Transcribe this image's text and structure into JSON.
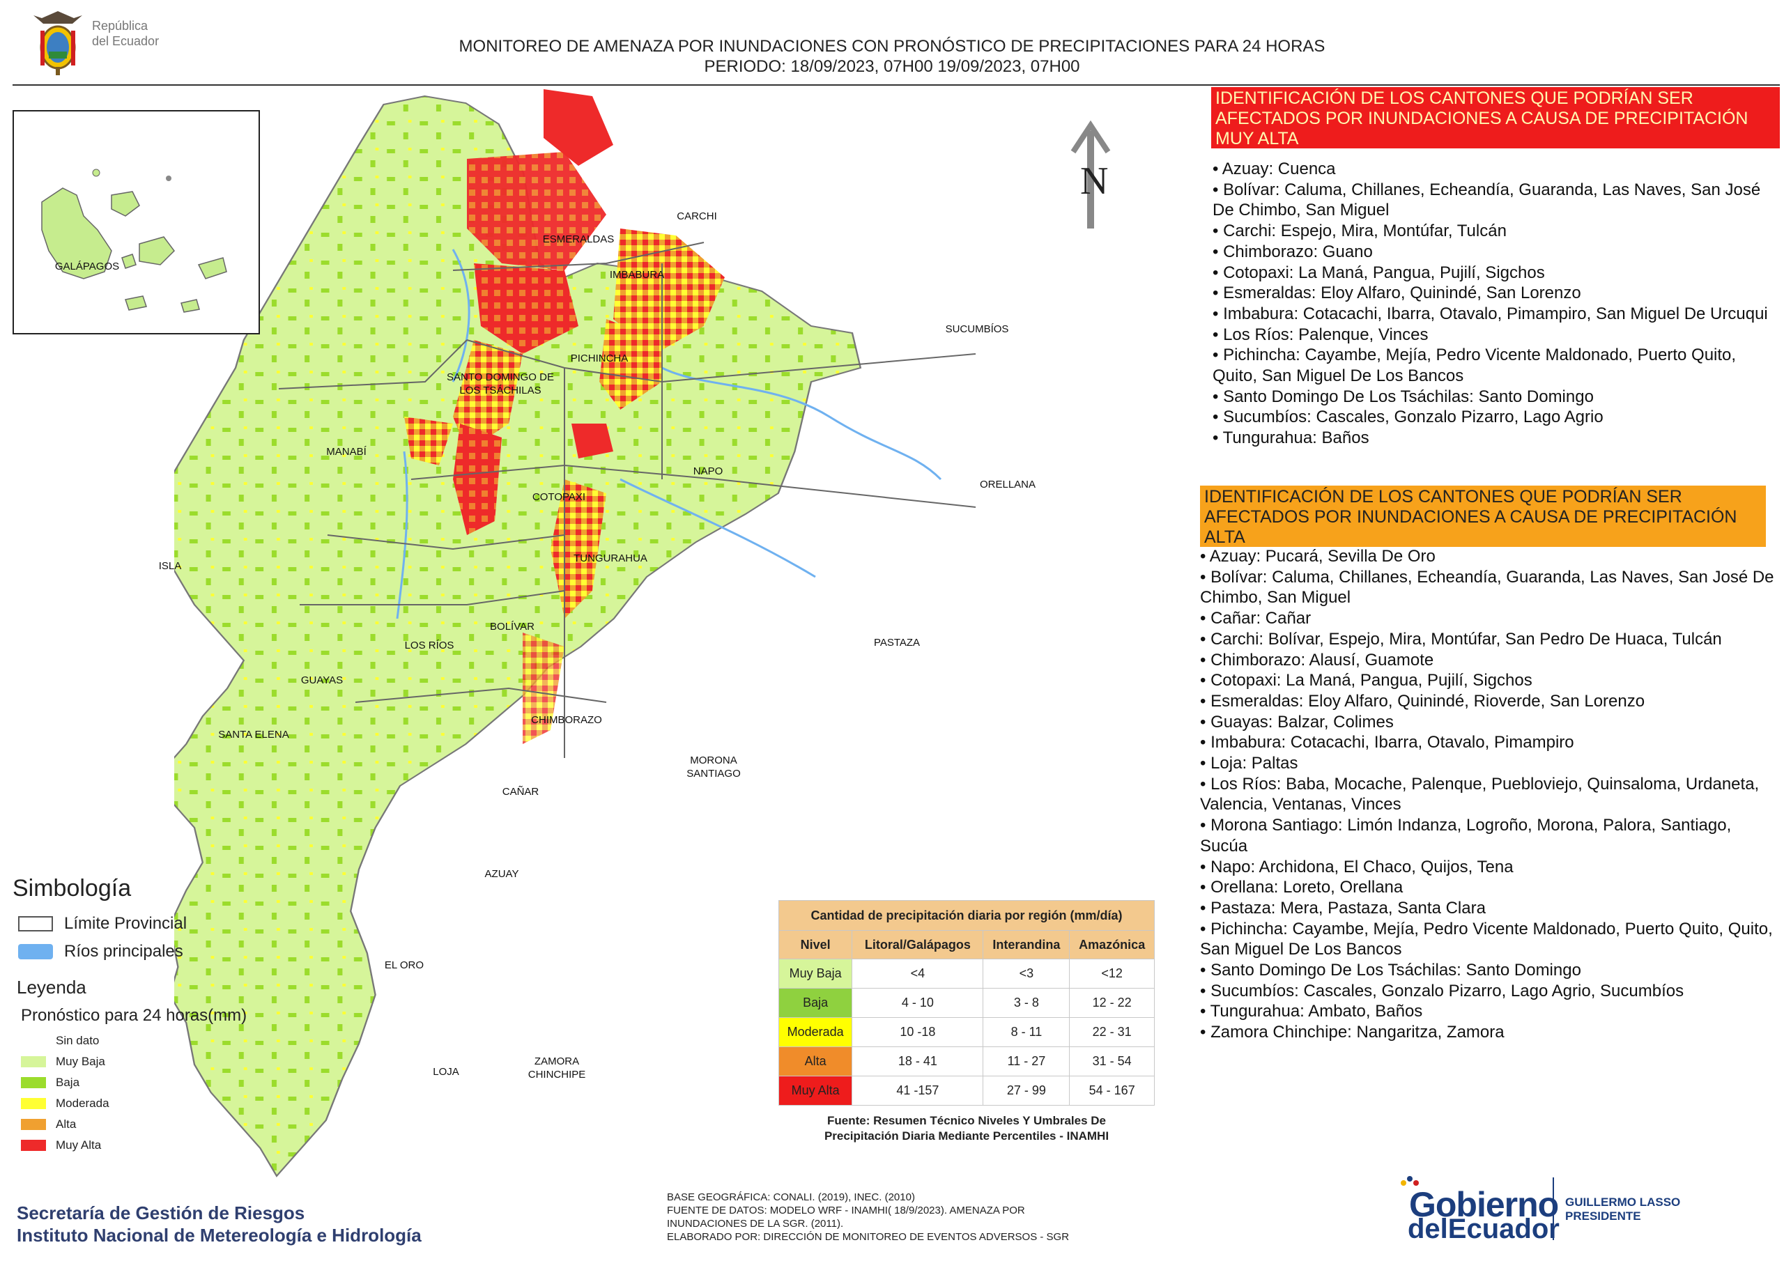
{
  "header": {
    "line1": "MONITOREO DE AMENAZA POR INUNDACIONES  CON PRONÓSTICO DE  PRECIPITACIONES PARA 24 HORAS",
    "line2": "PERIODO: 18/09/2023, 07H00 19/09/2023, 07H00",
    "logo_line1": "República",
    "logo_line2": "del Ecuador"
  },
  "map": {
    "north_label": "N",
    "inset_label": "GALÁPAGOS",
    "island_label": "ISLA",
    "provinces": [
      "ESMERALDAS",
      "CARCHI",
      "IMBABURA",
      "SUCUMBÍOS",
      "PICHINCHA",
      "SANTO DOMINGO DE LOS TSÁCHILAS",
      "MANABÍ",
      "NAPO",
      "ORELLANA",
      "COTOPAXI",
      "TUNGURAHUA",
      "BOLÍVAR",
      "LOS RÍOS",
      "GUAYAS",
      "SANTA ELENA",
      "PASTAZA",
      "CHIMBORAZO",
      "MORONA SANTIAGO",
      "CAÑAR",
      "AZUAY",
      "EL ORO",
      "LOJA",
      "ZAMORA CHINCHIPE"
    ]
  },
  "simbologia": {
    "title": "Simbología",
    "items": [
      {
        "label": "Límite Provincial",
        "color": "#ffffff"
      },
      {
        "label": "Ríos principales",
        "color": "#6fb1f0"
      }
    ]
  },
  "leyenda": {
    "title": "Leyenda",
    "subtitle": "Pronóstico para 24 horas(mm)",
    "items": [
      {
        "label": "Sin dato",
        "color": "#ffffff"
      },
      {
        "label": "Muy Baja",
        "color": "#d6f59a"
      },
      {
        "label": "Baja",
        "color": "#9bdc2c"
      },
      {
        "label": "Moderada",
        "color": "#ffff33"
      },
      {
        "label": "Alta",
        "color": "#f0a030"
      },
      {
        "label": "Muy Alta",
        "color": "#ee2a2a"
      }
    ]
  },
  "precip_table": {
    "caption": "Cantidad de precipitación diaria por región (mm/día)",
    "headers": [
      "Nivel",
      "Litoral/Galápagos",
      "Interandina",
      "Amazónica"
    ],
    "rows": [
      {
        "nivel": "Muy Baja",
        "color": "#d6f59a",
        "litoral": "<4",
        "interandina": "<3",
        "amazonica": "<12"
      },
      {
        "nivel": "Baja",
        "color": "#8fd13f",
        "litoral": "4 - 10",
        "interandina": "3 - 8",
        "amazonica": "12 - 22"
      },
      {
        "nivel": "Moderada",
        "color": "#ffff00",
        "litoral": "10 -18",
        "interandina": "8 - 11",
        "amazonica": "22 - 31"
      },
      {
        "nivel": "Alta",
        "color": "#f08c2a",
        "litoral": "18 - 41",
        "interandina": "11 - 27",
        "amazonica": "31 - 54"
      },
      {
        "nivel": "Muy Alta",
        "color": "#ee1c1c",
        "litoral": "41 -157",
        "interandina": "27 - 99",
        "amazonica": "54 - 167"
      }
    ],
    "source_line1": "Fuente: Resumen Técnico Niveles Y Umbrales De",
    "source_line2": "Precipitación Diaria Mediante Percentiles - INAMHI"
  },
  "muy_alta": {
    "heading": "IDENTIFICACIÓN DE LOS CANTONES QUE PODRÍAN SER AFECTADOS POR INUNDACIONES  A CAUSA DE PRECIPITACIÓN MUY ALTA",
    "items": [
      "Azuay: Cuenca",
      "Bolívar: Caluma, Chillanes, Echeandía, Guaranda, Las Naves, San José De Chimbo, San Miguel",
      "Carchi: Espejo, Mira, Montúfar, Tulcán",
      "Chimborazo: Guano",
      "Cotopaxi: La Maná, Pangua, Pujilí, Sigchos",
      "Esmeraldas: Eloy Alfaro, Quinindé, San Lorenzo",
      "Imbabura: Cotacachi, Ibarra, Otavalo, Pimampiro, San Miguel De Urcuqui",
      "Los Ríos: Palenque, Vinces",
      "Pichincha: Cayambe, Mejía, Pedro Vicente Maldonado, Puerto Quito, Quito, San Miguel De Los Bancos",
      "Santo Domingo De Los Tsáchilas: Santo Domingo",
      "Sucumbíos: Cascales, Gonzalo Pizarro, Lago Agrio",
      "Tungurahua: Baños"
    ]
  },
  "alta": {
    "heading": "IDENTIFICACIÓN DE LOS CANTONES QUE  PODRÍAN SER AFECTADOS POR INUNDACIONES  A CAUSA DE PRECIPITACIÓN ALTA",
    "items": [
      "Azuay: Pucará, Sevilla De Oro",
      "Bolívar: Caluma, Chillanes, Echeandía, Guaranda, Las Naves, San José De Chimbo, San Miguel",
      "Cañar: Cañar",
      "Carchi: Bolívar, Espejo, Mira, Montúfar, San Pedro De Huaca, Tulcán",
      "Chimborazo: Alausí, Guamote",
      "Cotopaxi: La Maná, Pangua, Pujilí, Sigchos",
      "Esmeraldas: Eloy Alfaro, Quinindé, Rioverde, San Lorenzo",
      "Guayas: Balzar, Colimes",
      "Imbabura: Cotacachi, Ibarra, Otavalo, Pimampiro",
      "Loja: Paltas",
      "Los Ríos: Baba, Mocache, Palenque, Puebloviejo, Quinsaloma, Urdaneta, Valencia, Ventanas, Vinces",
      "Morona Santiago: Limón Indanza, Logroño, Morona, Palora, Santiago, Sucúa",
      "Napo: Archidona, El Chaco, Quijos, Tena",
      "Orellana: Loreto, Orellana",
      "Pastaza: Mera, Pastaza, Santa Clara",
      "Pichincha: Cayambe, Mejía, Pedro Vicente Maldonado, Puerto Quito, Quito, San Miguel De Los Bancos",
      "Santo Domingo De Los Tsáchilas: Santo Domingo",
      "Sucumbíos: Cascales, Gonzalo Pizarro, Lago Agrio, Sucumbíos",
      "Tungurahua: Ambato, Baños",
      "Zamora Chinchipe: Nangaritza, Zamora"
    ]
  },
  "footer": {
    "org_line1": "Secretaría de Gestión de Riesgos",
    "org_line2": "Instituto Nacional de Metereología e Hidrología",
    "credits": [
      "BASE GEOGRÁFICA: CONALI. (2019), INEC. (2010)",
      "FUENTE DE DATOS: MODELO WRF - INAMHI( 18/9/2023).  AMENAZA POR",
      "INUNDACIONES DE LA SGR. (2011).",
      "ELABORADO POR: DIRECCIÓN DE MONITOREO DE EVENTOS ADVERSOS - SGR"
    ],
    "gob_line1": "Gobierno",
    "gob_line2": "delEcuador",
    "president_line1": "GUILLERMO LASSO",
    "president_line2": "PRESIDENTE"
  }
}
